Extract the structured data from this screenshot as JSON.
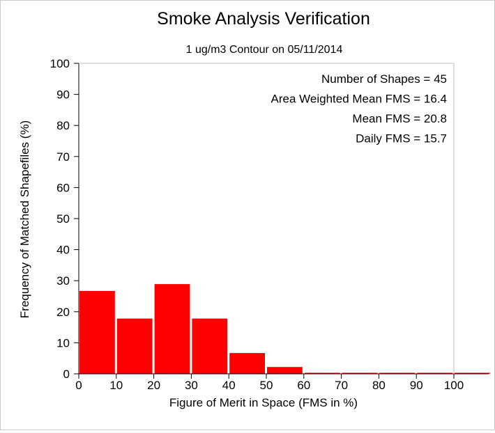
{
  "chart_data": {
    "type": "bar",
    "title": "Smoke Analysis Verification",
    "subtitle": "1 ug/m3 Contour on 05/11/2014",
    "xlabel": "Figure of Merit in Space (FMS in %)",
    "ylabel": "Frequency of Matched Shapefiles (%)",
    "xlim": [
      0,
      100
    ],
    "ylim": [
      0,
      100
    ],
    "xticks": [
      "0",
      "10",
      "20",
      "30",
      "40",
      "50",
      "60",
      "70",
      "80",
      "90",
      "100"
    ],
    "yticks": [
      "0",
      "10",
      "20",
      "30",
      "40",
      "50",
      "60",
      "70",
      "80",
      "90",
      "100"
    ],
    "bins": [
      {
        "start": 0,
        "end": 10,
        "value": 26.7
      },
      {
        "start": 10,
        "end": 20,
        "value": 17.8
      },
      {
        "start": 20,
        "end": 30,
        "value": 28.9
      },
      {
        "start": 30,
        "end": 40,
        "value": 17.8
      },
      {
        "start": 40,
        "end": 50,
        "value": 6.7
      },
      {
        "start": 50,
        "end": 60,
        "value": 2.2
      },
      {
        "start": 60,
        "end": 70,
        "value": 0
      },
      {
        "start": 70,
        "end": 80,
        "value": 0
      },
      {
        "start": 80,
        "end": 90,
        "value": 0
      },
      {
        "start": 90,
        "end": 100,
        "value": 0
      },
      {
        "start": 100,
        "end": 110,
        "value": 0
      }
    ],
    "bar_color": "#ff0000",
    "grid": false,
    "annotations": [
      "Number of Shapes = 45",
      "Area Weighted Mean FMS = 16.4",
      "Mean FMS = 20.8",
      "Daily FMS = 15.7"
    ]
  }
}
